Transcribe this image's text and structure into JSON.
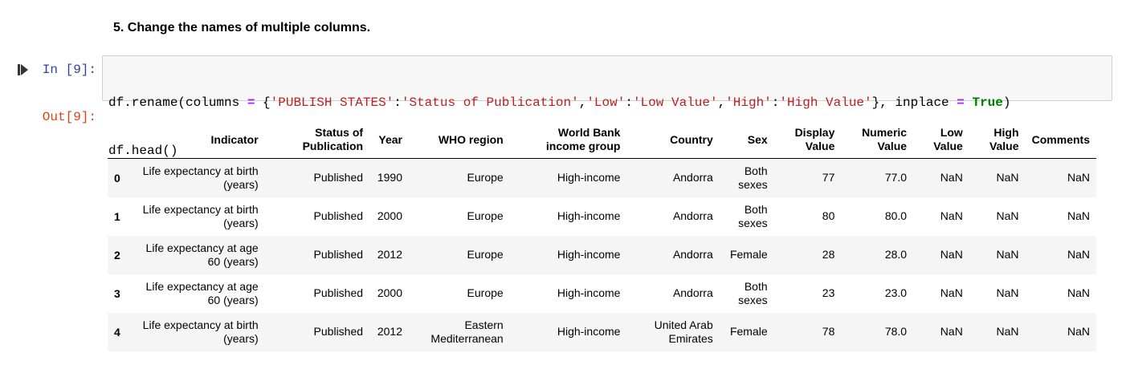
{
  "section_heading": "5. Change the names of multiple columns.",
  "cell": {
    "run_icon": "run-step-icon",
    "in_prompt": "In [9]:",
    "out_prompt": "Out[9]:",
    "code": {
      "line1": {
        "t1": "df.rename(columns ",
        "t2": "=",
        "t3": " {",
        "t4": "'PUBLISH STATES'",
        "t5": ":",
        "t6": "'Status of Publication'",
        "t7": ",",
        "t8": "'Low'",
        "t9": ":",
        "t10": "'Low Value'",
        "t11": ",",
        "t12": "'High'",
        "t13": ":",
        "t14": "'High Value'",
        "t15": "}, inplace ",
        "t16": "=",
        "t17": " ",
        "t18": "True",
        "t19": ")"
      },
      "line2": "df.head()"
    }
  },
  "table": {
    "columns": [
      "",
      "Indicator",
      "Status of Publication",
      "Year",
      "WHO region",
      "World Bank income group",
      "Country",
      "Sex",
      "Display Value",
      "Numeric Value",
      "Low Value",
      "High Value",
      "Comments"
    ],
    "rows": [
      [
        "0",
        "Life expectancy at birth (years)",
        "Published",
        "1990",
        "Europe",
        "High-income",
        "Andorra",
        "Both sexes",
        "77",
        "77.0",
        "NaN",
        "NaN",
        "NaN"
      ],
      [
        "1",
        "Life expectancy at birth (years)",
        "Published",
        "2000",
        "Europe",
        "High-income",
        "Andorra",
        "Both sexes",
        "80",
        "80.0",
        "NaN",
        "NaN",
        "NaN"
      ],
      [
        "2",
        "Life expectancy at age 60 (years)",
        "Published",
        "2012",
        "Europe",
        "High-income",
        "Andorra",
        "Female",
        "28",
        "28.0",
        "NaN",
        "NaN",
        "NaN"
      ],
      [
        "3",
        "Life expectancy at age 60 (years)",
        "Published",
        "2000",
        "Europe",
        "High-income",
        "Andorra",
        "Both sexes",
        "23",
        "23.0",
        "NaN",
        "NaN",
        "NaN"
      ],
      [
        "4",
        "Life expectancy at birth (years)",
        "Published",
        "2012",
        "Eastern Mediterranean",
        "High-income",
        "United Arab Emirates",
        "Female",
        "78",
        "78.0",
        "NaN",
        "NaN",
        "NaN"
      ]
    ]
  }
}
